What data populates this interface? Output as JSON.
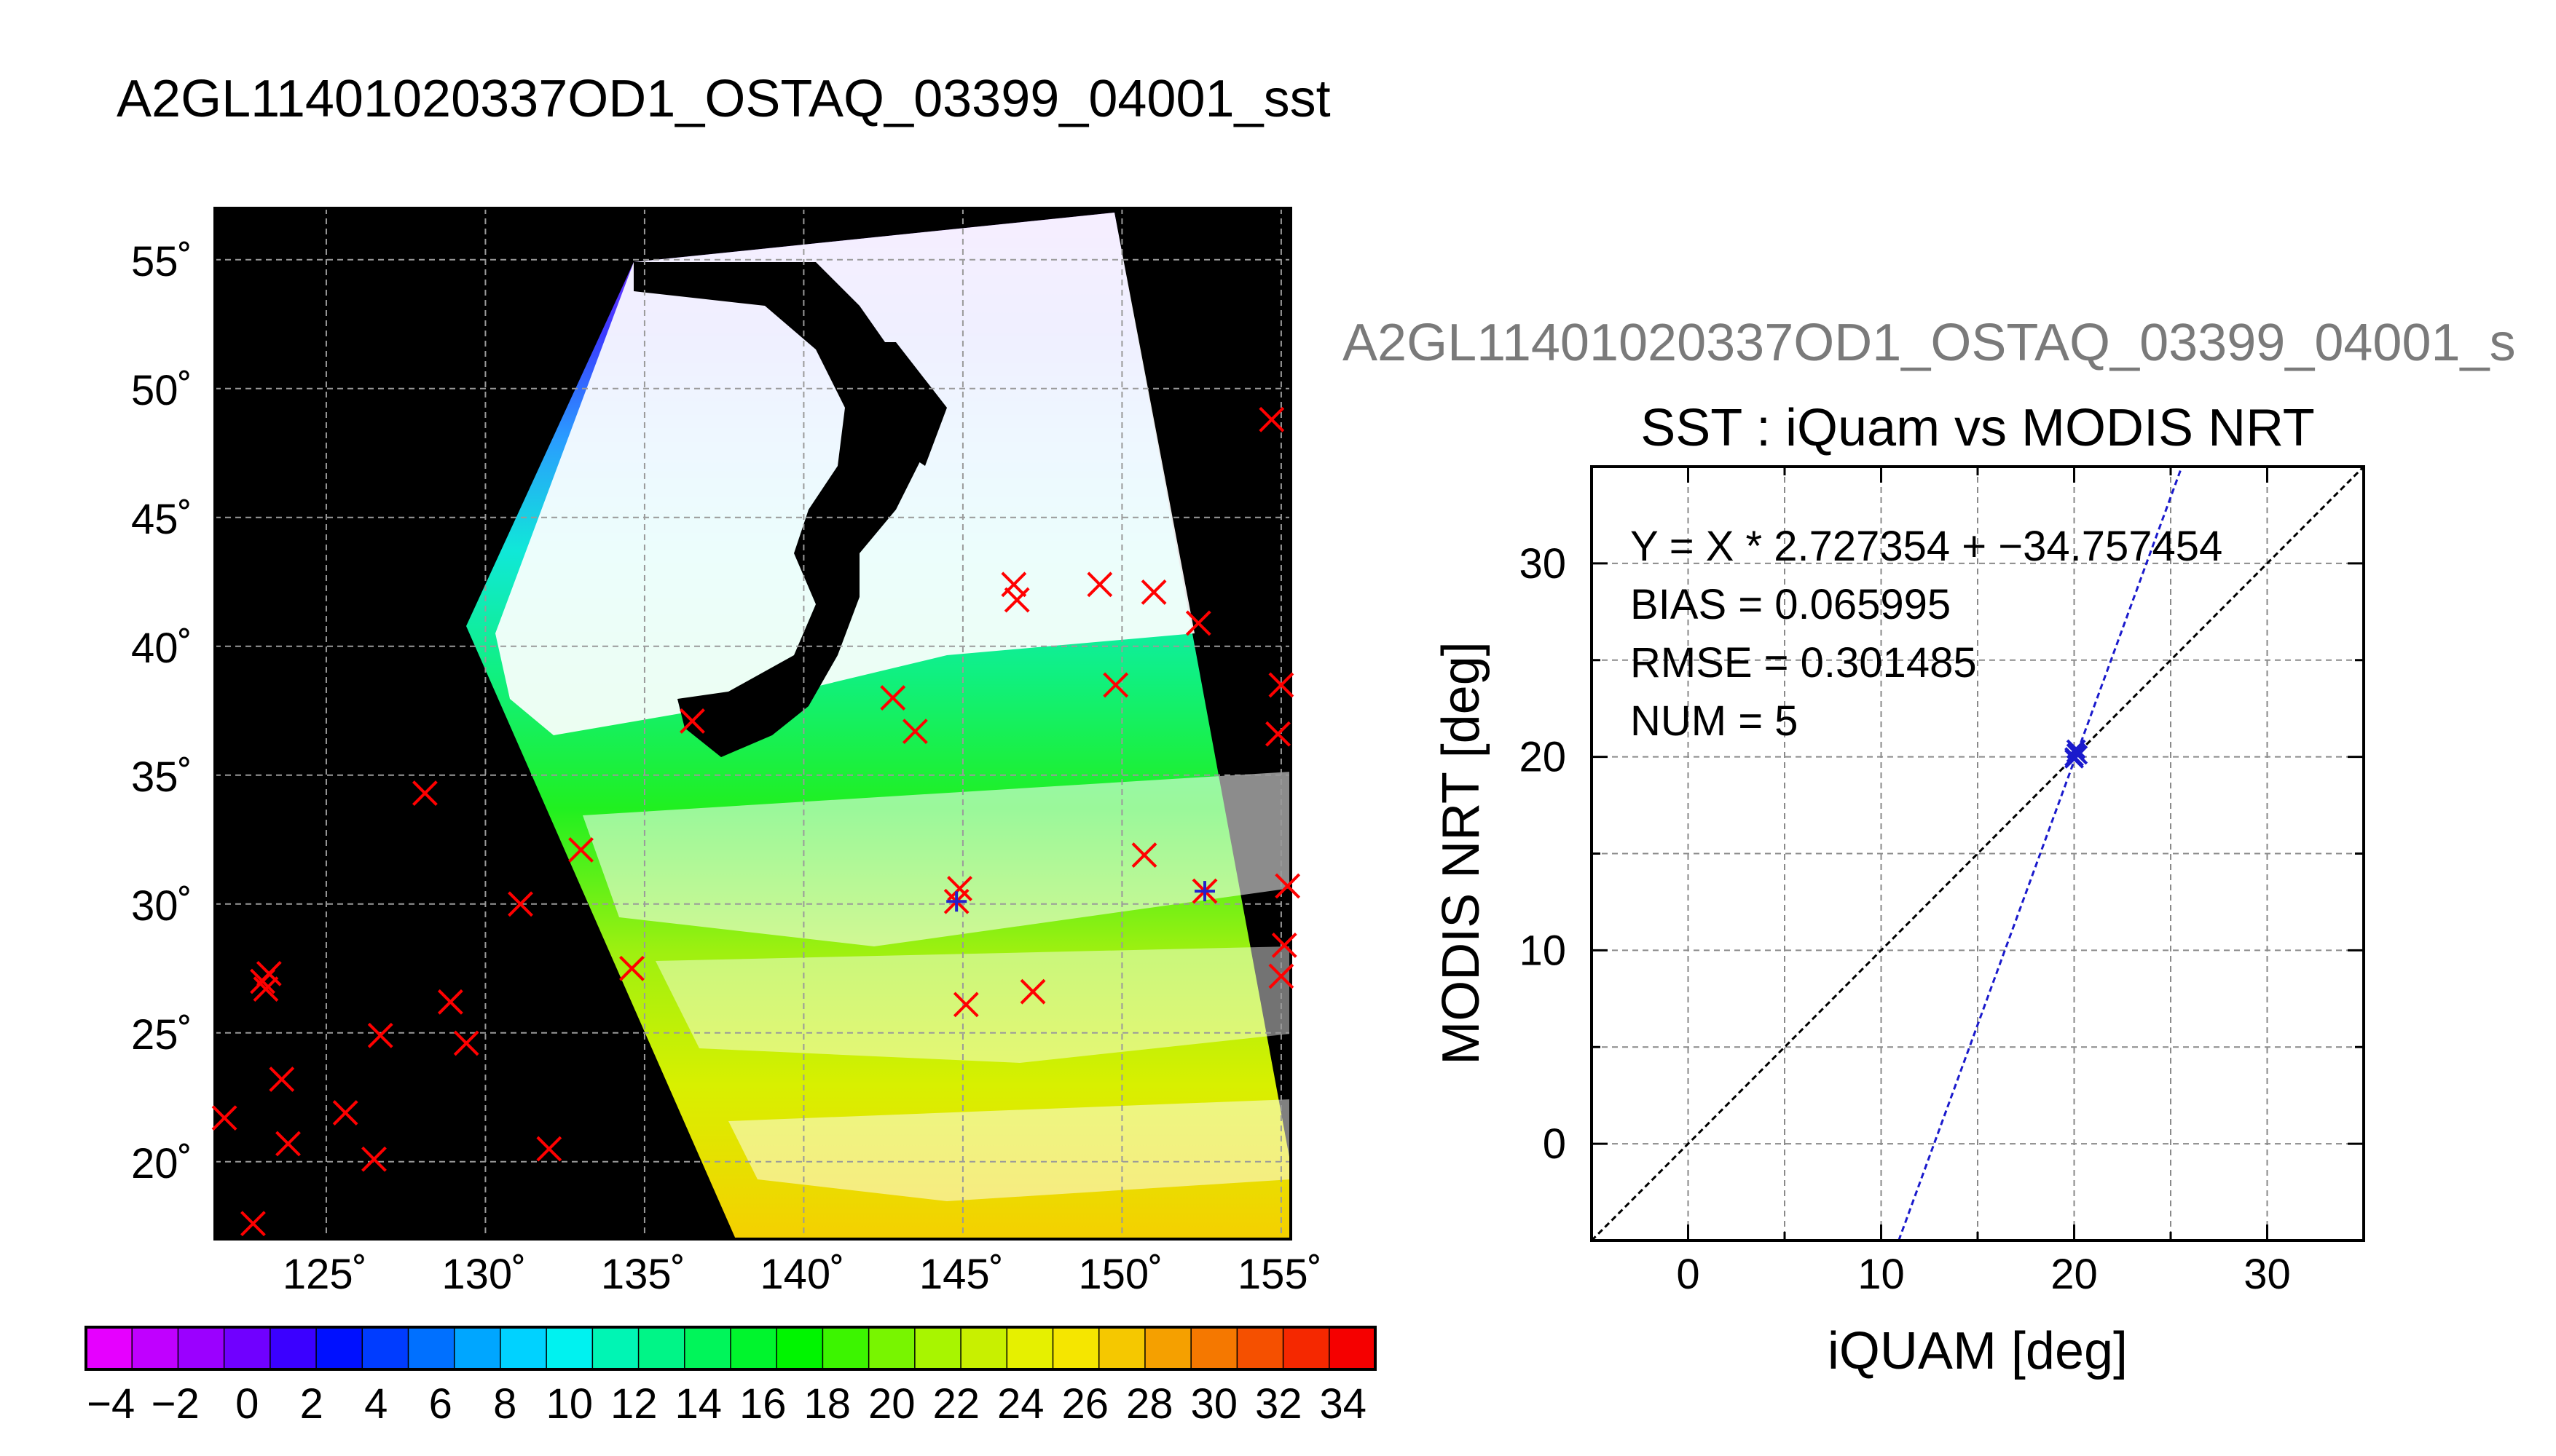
{
  "page": {
    "title": "A2GL11401020337OD1_OSTAQ_03399_04001_sst"
  },
  "map": {
    "lat_labels": [
      "55˚",
      "50˚",
      "45˚",
      "40˚",
      "35˚",
      "30˚",
      "25˚",
      "20˚"
    ],
    "lon_labels": [
      "125˚",
      "130˚",
      "135˚",
      "140˚",
      "145˚",
      "150˚",
      "155˚"
    ],
    "lat_range": [
      17,
      57
    ],
    "lon_range": [
      121.5,
      155.3
    ],
    "background_color": "#000000",
    "marker_color": "#ff0000",
    "match_marker_color": "#2222cc",
    "obs_markers": [
      {
        "lon": 154.7,
        "lat": 48.8
      },
      {
        "lon": 146.6,
        "lat": 42.4
      },
      {
        "lon": 146.7,
        "lat": 41.8
      },
      {
        "lon": 149.3,
        "lat": 42.4
      },
      {
        "lon": 151.0,
        "lat": 42.1
      },
      {
        "lon": 152.4,
        "lat": 40.9
      },
      {
        "lon": 149.8,
        "lat": 38.5
      },
      {
        "lon": 142.8,
        "lat": 38.0
      },
      {
        "lon": 143.5,
        "lat": 36.7
      },
      {
        "lon": 136.5,
        "lat": 37.1
      },
      {
        "lon": 155.0,
        "lat": 38.5
      },
      {
        "lon": 154.9,
        "lat": 36.6
      },
      {
        "lon": 128.1,
        "lat": 34.3
      },
      {
        "lon": 133.0,
        "lat": 32.1
      },
      {
        "lon": 150.7,
        "lat": 31.9
      },
      {
        "lon": 144.9,
        "lat": 30.6
      },
      {
        "lon": 131.1,
        "lat": 30.0
      },
      {
        "lon": 155.2,
        "lat": 30.7
      },
      {
        "lon": 155.1,
        "lat": 28.4
      },
      {
        "lon": 155.0,
        "lat": 27.2
      },
      {
        "lon": 134.6,
        "lat": 27.5
      },
      {
        "lon": 123.0,
        "lat": 27.0
      },
      {
        "lon": 123.1,
        "lat": 26.7
      },
      {
        "lon": 123.2,
        "lat": 27.3
      },
      {
        "lon": 128.9,
        "lat": 26.2
      },
      {
        "lon": 147.2,
        "lat": 26.6
      },
      {
        "lon": 145.1,
        "lat": 26.1
      },
      {
        "lon": 126.7,
        "lat": 24.9
      },
      {
        "lon": 129.4,
        "lat": 24.6
      },
      {
        "lon": 123.6,
        "lat": 23.2
      },
      {
        "lon": 125.6,
        "lat": 21.9
      },
      {
        "lon": 121.8,
        "lat": 21.7
      },
      {
        "lon": 123.8,
        "lat": 20.7
      },
      {
        "lon": 126.5,
        "lat": 20.1
      },
      {
        "lon": 132.0,
        "lat": 20.5
      },
      {
        "lon": 122.7,
        "lat": 17.6
      }
    ],
    "match_markers": [
      {
        "lon": 144.8,
        "lat": 30.1
      },
      {
        "lon": 152.6,
        "lat": 30.5
      }
    ]
  },
  "colorbar": {
    "labels": [
      "−4",
      "−2",
      "0",
      "2",
      "4",
      "6",
      "8",
      "10",
      "12",
      "14",
      "16",
      "18",
      "20",
      "22",
      "24",
      "26",
      "28",
      "30",
      "32",
      "34"
    ],
    "range": [
      -5,
      35
    ],
    "colors": [
      "#e600ff",
      "#c000ff",
      "#9b00ff",
      "#7000ff",
      "#3b00ff",
      "#0010ff",
      "#003cff",
      "#0070ff",
      "#00a6ff",
      "#00d2ff",
      "#00f2f0",
      "#00f5b4",
      "#00f587",
      "#00f55a",
      "#00f52d",
      "#00f500",
      "#3cf500",
      "#78f500",
      "#a8f500",
      "#c8f000",
      "#e6f000",
      "#f5e600",
      "#f5c800",
      "#f5a000",
      "#f57800",
      "#f55000",
      "#f52800",
      "#f50000"
    ]
  },
  "scatter": {
    "file_title": "A2GL11401020337OD1_OSTAQ_03399_04001_s",
    "title": "SST : iQuam vs MODIS NRT",
    "xlabel": "iQUAM [deg]",
    "ylabel": "MODIS NRT [deg]",
    "x_tick_labels": [
      "0",
      "10",
      "20",
      "30"
    ],
    "y_tick_labels": [
      "0",
      "10",
      "20",
      "30"
    ],
    "stats": {
      "fit_line": "Y = X * 2.727354 + −34.757454",
      "bias": "BIAS = 0.065995",
      "rmse": "RMSE = 0.301485",
      "num": "NUM = 5"
    },
    "fit_color": "#1a1acc",
    "identity_color": "#000000"
  },
  "chart_data": [
    {
      "type": "scatter",
      "title": "SST : iQuam vs MODIS NRT",
      "xlabel": "iQUAM [deg]",
      "ylabel": "MODIS NRT [deg]",
      "xlim": [
        -5,
        35
      ],
      "ylim": [
        -5,
        35
      ],
      "grid": true,
      "series": [
        {
          "x": [
            20.0,
            20.1,
            20.2,
            20.0,
            20.1
          ],
          "y": [
            20.0,
            20.4,
            20.1,
            19.9,
            20.2
          ]
        }
      ],
      "fit": {
        "slope": 2.727354,
        "intercept": -34.757454
      },
      "identity_line": true
    }
  ]
}
